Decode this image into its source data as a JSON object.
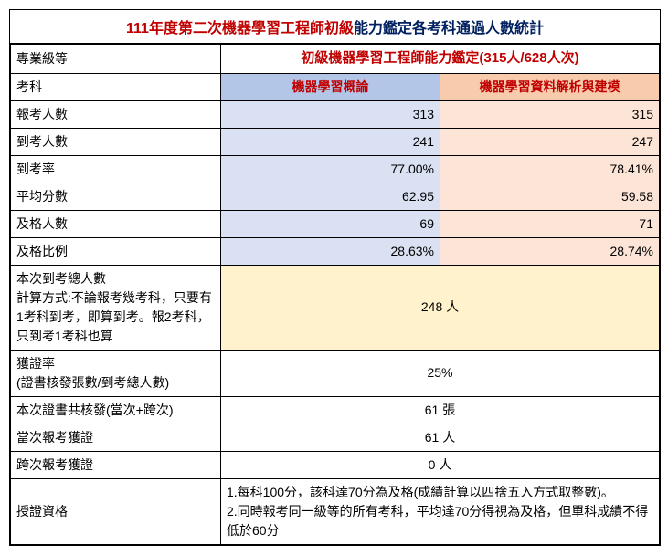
{
  "title": {
    "part1": "111年度第二次機器學習工程師初級",
    "part2": "能力鑑定各考科通過人數統計"
  },
  "header": {
    "level_label": "專業級等",
    "level_value": "初級機器學習工程師能力鑑定(315人/628人次)",
    "subject_label": "考科",
    "subject_a": "機器學習概論",
    "subject_b": "機器學習資料解析與建模"
  },
  "rows": [
    {
      "label": "報考人數",
      "a": "313",
      "b": "315"
    },
    {
      "label": "到考人數",
      "a": "241",
      "b": "247"
    },
    {
      "label": "到考率",
      "a": "77.00%",
      "b": "78.41%"
    },
    {
      "label": "平均分數",
      "a": "62.95",
      "b": "59.58"
    },
    {
      "label": "及格人數",
      "a": "69",
      "b": "71"
    },
    {
      "label": "及格比例",
      "a": "28.63%",
      "b": "28.74%"
    }
  ],
  "attendance_total": {
    "label": "本次到考總人數\n計算方式:不論報考幾考科，只要有1考科到考，即算到考。報2考科，只到考1考科也算",
    "value": "248 人"
  },
  "cert_rate": {
    "label": "獲證率\n(證書核發張數/到考總人數)",
    "value": "25%"
  },
  "cert_issued": {
    "label": "本次證書共核發(當次+跨次)",
    "value": "61 張"
  },
  "cert_current": {
    "label": "當次報考獲證",
    "value": "61 人"
  },
  "cert_cross": {
    "label": "跨次報考獲證",
    "value": "0 人"
  },
  "qualification": {
    "label": "授證資格",
    "value": "1.每科100分，該科達70分為及格(成績計算以四捨五入方式取整數)。\n2.同時報考同一級等的所有考科，平均達70分得視為及格，但單科成績不得低於60分"
  },
  "colors": {
    "title_red": "#c00000",
    "title_blue": "#002060",
    "blue_header": "#b4c6e7",
    "orange_header": "#f8cbad",
    "blue_cell": "#d9e1f2",
    "orange_cell": "#fce4d6",
    "yellow_cell": "#fff2cc"
  }
}
